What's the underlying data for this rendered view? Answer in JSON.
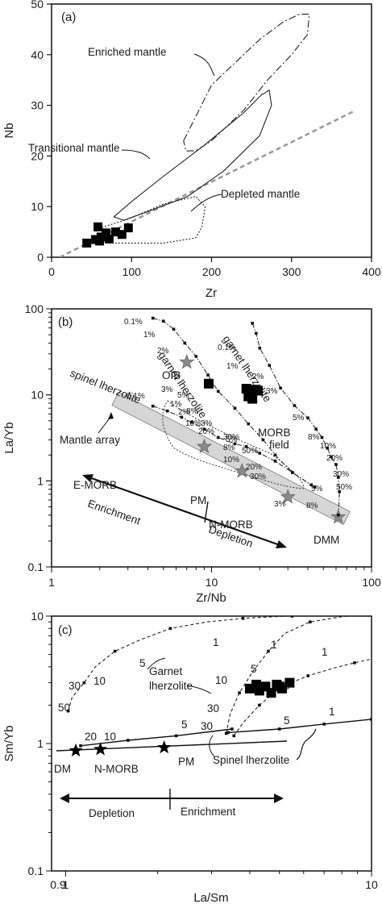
{
  "chart_data": [
    {
      "panel": "(a)",
      "type": "scatter",
      "xlabel": "Zr",
      "ylabel": "Nb",
      "xlim": [
        0,
        400
      ],
      "ylim": [
        0,
        50
      ],
      "xticks": [
        "0",
        "100",
        "200",
        "300",
        "400"
      ],
      "yticks": [
        "0",
        "10",
        "20",
        "30",
        "40",
        "50"
      ],
      "samples": [
        {
          "x": 44,
          "y": 2.8
        },
        {
          "x": 55,
          "y": 3.5
        },
        {
          "x": 58,
          "y": 6.0
        },
        {
          "x": 62,
          "y": 4.0
        },
        {
          "x": 68,
          "y": 4.8
        },
        {
          "x": 72,
          "y": 3.6
        },
        {
          "x": 80,
          "y": 5.0
        },
        {
          "x": 88,
          "y": 4.5
        },
        {
          "x": 96,
          "y": 5.8
        },
        {
          "x": 60,
          "y": 3.2
        }
      ],
      "regions": [
        {
          "label": "Enriched mantle",
          "style": "dashdot",
          "points": [
            [
              165,
              23
            ],
            [
              200,
              34
            ],
            [
              260,
              43
            ],
            [
              290,
              46.5
            ],
            [
              310,
              48
            ],
            [
              322,
              48
            ],
            [
              320,
              44
            ],
            [
              300,
              40
            ],
            [
              270,
              35
            ],
            [
              240,
              29
            ],
            [
              200,
              23
            ],
            [
              180,
              21
            ],
            [
              168,
              21
            ]
          ]
        },
        {
          "label": "Transitional mantle",
          "style": "solid",
          "points": [
            [
              78,
              8
            ],
            [
              100,
              11
            ],
            [
              140,
              16
            ],
            [
              190,
              22
            ],
            [
              240,
              28.5
            ],
            [
              262,
              32
            ],
            [
              272,
              33
            ],
            [
              275,
              30
            ],
            [
              260,
              24
            ],
            [
              215,
              17
            ],
            [
              170,
              12
            ],
            [
              120,
              9
            ],
            [
              90,
              7.3
            ]
          ]
        },
        {
          "label": "Depleted mantle",
          "style": "dotted",
          "points": [
            [
              55,
              5.5
            ],
            [
              95,
              7.5
            ],
            [
              140,
              10.5
            ],
            [
              180,
              12
            ],
            [
              192,
              10
            ],
            [
              188,
              6
            ],
            [
              180,
              3.8
            ],
            [
              140,
              2.8
            ],
            [
              90,
              2.8
            ],
            [
              60,
              2.8
            ]
          ]
        }
      ],
      "reference_line": {
        "x": [
          10,
          380
        ],
        "y": [
          0,
          29
        ]
      },
      "annotations": [
        "(a)",
        "Enriched mantle",
        "Transitional mantle",
        "Depleted mantle"
      ]
    },
    {
      "panel": "(b)",
      "type": "scatter",
      "xscale": "log",
      "yscale": "log",
      "xlabel": "Zr/Nb",
      "ylabel": "La/Yb",
      "xlim": [
        1,
        100
      ],
      "ylim": [
        0.1,
        100
      ],
      "xticks": [
        "1",
        "10",
        "100"
      ],
      "yticks": [
        "0.1",
        "1",
        "10",
        "100"
      ],
      "samples": [
        {
          "x": 9.6,
          "y": 13.5
        },
        {
          "x": 16.5,
          "y": 11.8
        },
        {
          "x": 17.5,
          "y": 10.5
        },
        {
          "x": 18.5,
          "y": 11.5
        },
        {
          "x": 19.5,
          "y": 11.2
        },
        {
          "x": 17.0,
          "y": 9.6
        },
        {
          "x": 18.0,
          "y": 9.0
        }
      ],
      "reference_stars": [
        {
          "label": "OIB",
          "x": 7.0,
          "y": 24
        },
        {
          "label": "E-MORB",
          "x": 9.0,
          "y": 2.5
        },
        {
          "label": "PM",
          "x": 15.5,
          "y": 1.3
        },
        {
          "label": "N-MORB",
          "x": 30,
          "y": 0.65
        },
        {
          "label": "DMM",
          "x": 62,
          "y": 0.38
        }
      ],
      "melting_curves": [
        {
          "name": "spinel lherzolite",
          "points": [
            [
              4.3,
              7.4
            ],
            [
              5.3,
              6.5
            ],
            [
              6.5,
              5.5
            ],
            [
              7.5,
              4.8
            ],
            [
              9,
              4.0
            ],
            [
              11,
              3.2
            ],
            [
              14,
              2.7
            ],
            [
              16.5,
              2.5
            ],
            [
              20,
              2.1
            ],
            [
              25,
              1.7
            ],
            [
              32,
              1.25
            ],
            [
              42,
              0.9
            ]
          ]
        },
        {
          "name": "garnet lherzolite",
          "points": [
            [
              4.3,
              78
            ],
            [
              5.0,
              72
            ],
            [
              5.8,
              58
            ],
            [
              6.8,
              40
            ],
            [
              8,
              28
            ],
            [
              9.5,
              17
            ],
            [
              11,
              11
            ],
            [
              14,
              7
            ],
            [
              17,
              4.6
            ],
            [
              21,
              3
            ],
            [
              25,
              2
            ],
            [
              32,
              1.25
            ],
            [
              44,
              0.85
            ]
          ]
        },
        {
          "name": "garnet lherzolite",
          "points": [
            [
              18,
              68
            ],
            [
              19,
              52
            ],
            [
              20,
              35
            ],
            [
              23,
              22
            ],
            [
              27,
              12
            ],
            [
              33,
              7.5
            ],
            [
              40,
              5.4
            ],
            [
              45,
              4.0
            ],
            [
              49,
              3.2
            ],
            [
              53,
              2.4
            ],
            [
              56,
              1.9
            ],
            [
              60,
              1.55
            ],
            [
              62,
              1.1
            ],
            [
              63,
              0.75
            ],
            [
              62,
              0.4
            ]
          ]
        }
      ],
      "mantle_array": {
        "from": [
          2.5,
          9.0
        ],
        "to": [
          70,
          0.37
        ]
      },
      "annotations": [
        "(b)",
        "garnet lherzolite",
        "garnet lherzolite",
        "spinel lherzolite",
        "OIB",
        "Mantle array",
        "MORB",
        "field",
        "E-MORB",
        "PM",
        "N-MORB",
        "DMM",
        "Enrichment",
        "Depletion",
        "0.1%",
        "1%",
        "2%",
        "3%",
        "5%",
        "8%",
        "10%",
        "20%",
        "30%",
        "50%"
      ]
    },
    {
      "panel": "(c)",
      "type": "scatter",
      "xscale": "log",
      "yscale": "log",
      "xlabel": "La/Sm",
      "ylabel": "Sm/Yb",
      "xlim": [
        0.9,
        10
      ],
      "ylim": [
        0.1,
        10
      ],
      "xticks": [
        "0.9",
        "1",
        "10"
      ],
      "yticks": [
        "0.1",
        "1",
        "10"
      ],
      "samples": [
        {
          "x": 4.0,
          "y": 2.7
        },
        {
          "x": 4.3,
          "y": 2.6
        },
        {
          "x": 4.5,
          "y": 2.8
        },
        {
          "x": 4.7,
          "y": 2.5
        },
        {
          "x": 4.9,
          "y": 2.9
        },
        {
          "x": 5.1,
          "y": 2.7
        },
        {
          "x": 5.4,
          "y": 3.0
        },
        {
          "x": 4.2,
          "y": 2.9
        },
        {
          "x": 5.0,
          "y": 2.8
        }
      ],
      "reference_stars": [
        {
          "label": "DM",
          "x": 1.08,
          "y": 0.88
        },
        {
          "label": "N-MORB",
          "x": 1.3,
          "y": 0.9
        },
        {
          "label": "PM",
          "x": 2.1,
          "y": 0.93
        }
      ],
      "melting_curves": [
        {
          "name": "Garnet lherzolite",
          "points": [
            [
              1.02,
              1.8
            ],
            [
              1.05,
              2.3
            ],
            [
              1.15,
              3.0
            ],
            [
              1.25,
              4.0
            ],
            [
              1.45,
              5.3
            ],
            [
              1.75,
              6.5
            ],
            [
              2.2,
              8.0
            ],
            [
              2.9,
              9.0
            ],
            [
              3.8,
              9.6
            ],
            [
              4.8,
              9.9
            ],
            [
              5.5,
              10.0
            ]
          ]
        },
        {
          "name": "Garnet lherzolite",
          "points": [
            [
              3.35,
              1.2
            ],
            [
              3.45,
              1.7
            ],
            [
              3.7,
              2.5
            ],
            [
              4.1,
              3.7
            ],
            [
              4.6,
              5.3
            ],
            [
              5.2,
              7.3
            ],
            [
              6.3,
              9.0
            ],
            [
              8.0,
              9.9
            ],
            [
              10,
              10.3
            ]
          ]
        },
        {
          "name": "Garnet lherzolite",
          "points": [
            [
              3.55,
              1.15
            ],
            [
              3.8,
              1.45
            ],
            [
              4.3,
              2.0
            ],
            [
              5.1,
              2.8
            ],
            [
              6.2,
              3.4
            ],
            [
              7.5,
              3.9
            ],
            [
              8.8,
              4.3
            ],
            [
              10,
              4.6
            ]
          ]
        },
        {
          "name": "Spinel lherzolite",
          "points": [
            [
              1.12,
              0.96
            ],
            [
              1.6,
              1.06
            ],
            [
              2.3,
              1.15
            ],
            [
              3.5,
              1.3
            ]
          ]
        },
        {
          "name": "Spinel lherzolite",
          "points": [
            [
              3.4,
              1.22
            ],
            [
              5.0,
              1.3
            ],
            [
              7.0,
              1.42
            ],
            [
              10,
              1.55
            ]
          ]
        }
      ],
      "curve_labels": [
        "1",
        "5",
        "10",
        "20",
        "30",
        "50",
        "1",
        "5",
        "10",
        "30",
        "1",
        "5",
        "20",
        "10",
        "5",
        "30",
        "5",
        "1"
      ],
      "annotations": [
        "(c)",
        "Garnet",
        "lherzolite",
        "Spinel lherzolite",
        "DM",
        "N-MORB",
        "PM",
        "Depletion",
        "Enrichment"
      ]
    }
  ]
}
